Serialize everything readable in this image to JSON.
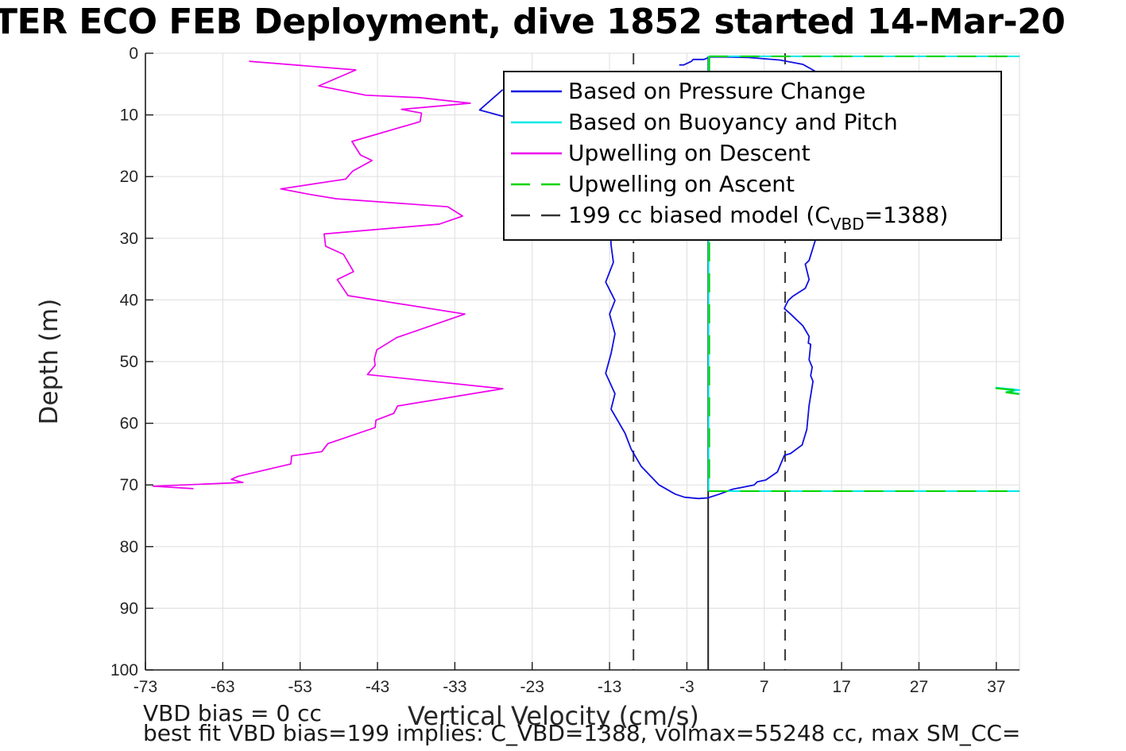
{
  "title": "TER ECO FEB Deployment, dive 1852 started 14-Mar-20",
  "axes": {
    "xlabel": "Vertical Velocity (cm/s)",
    "ylabel": "Depth (m)",
    "x_ticks": [
      -73,
      -63,
      -53,
      -43,
      -33,
      -23,
      -13,
      -3,
      7,
      17,
      27,
      37
    ],
    "y_ticks": [
      0,
      10,
      20,
      30,
      40,
      50,
      60,
      70,
      80,
      90,
      100
    ]
  },
  "annotations": {
    "vbd_bias_line": "VBD bias = 0 cc",
    "best_fit_line": "best fit VBD bias=199 implies: C_VBD=1388, volmax=55248 cc, max SM_CC="
  },
  "legend": {
    "entries": [
      {
        "label": "Based on Pressure Change",
        "color": "#1010e0",
        "dash": "solid"
      },
      {
        "label": "Based on Buoyancy and Pitch",
        "color": "#00e8e8",
        "dash": "solid"
      },
      {
        "label": "Upwelling on Descent",
        "color": "#ee00ee",
        "dash": "solid"
      },
      {
        "label": "Upwelling on Ascent",
        "color": "#00d400",
        "dash": "dashed"
      },
      {
        "label_prefix": "199 cc biased model (C",
        "label_sub": "VBD",
        "label_suffix": "=1388)",
        "color": "#333333",
        "dash": "dashed"
      }
    ]
  },
  "chart_data": {
    "type": "line",
    "title": "TER ECO FEB Deployment, dive 1852 started 14-Mar-20",
    "xlabel": "Vertical Velocity (cm/s)",
    "ylabel": "Depth (m)",
    "xlim": [
      -73,
      40
    ],
    "ylim": [
      0,
      100
    ],
    "y_inverted": true,
    "grid": true,
    "legend_position": "upper center",
    "grid_color": "#e3e3e3",
    "spine_color": "#1a1a1a",
    "tick_label_color": "#262626",
    "series": [
      {
        "name": "model-biased-dashed",
        "legend": "199 cc biased model (C_VBD=1388)",
        "color": "#3d3d3d",
        "dash": "dashed",
        "width": 2,
        "segments": [
          [
            [
              -9.9,
              0
            ],
            [
              -9.9,
              100
            ]
          ],
          [
            [
              9.7,
              0
            ],
            [
              9.7,
              100
            ]
          ]
        ]
      },
      {
        "name": "model-zero-line",
        "legend": null,
        "color": "#222222",
        "dash": "solid",
        "width": 2,
        "segments": [
          [
            [
              -0.25,
              0.5
            ],
            [
              -0.25,
              100
            ]
          ]
        ]
      },
      {
        "name": "upwelling-on-descent",
        "legend": "Upwelling on Descent",
        "color": "#ee00ee",
        "dash": "solid",
        "width": 1.7,
        "segments": [
          [
            [
              -59.6,
              1.3
            ],
            [
              -45.8,
              2.7
            ],
            [
              -50.6,
              5.3
            ],
            [
              -44.5,
              6.8
            ],
            [
              -37.5,
              7.2
            ],
            [
              -31.0,
              8.1
            ],
            [
              -39.9,
              9.1
            ],
            [
              -37.3,
              9.7
            ],
            [
              -37.5,
              11.1
            ],
            [
              -46.3,
              14.3
            ],
            [
              -45.2,
              16.5
            ],
            [
              -43.7,
              17.4
            ],
            [
              -46.2,
              19.1
            ],
            [
              -47.1,
              20.4
            ],
            [
              -55.5,
              22.0
            ],
            [
              -51.7,
              22.9
            ],
            [
              -48.3,
              23.6
            ],
            [
              -33.9,
              24.9
            ],
            [
              -32.0,
              26.4
            ],
            [
              -35.0,
              27.7
            ],
            [
              -49.9,
              29.3
            ],
            [
              -49.7,
              31.3
            ],
            [
              -47.4,
              32.6
            ],
            [
              -46.1,
              35.4
            ],
            [
              -48.2,
              36.7
            ],
            [
              -46.8,
              39.3
            ],
            [
              -31.7,
              42.3
            ],
            [
              -40.5,
              46.1
            ],
            [
              -43.1,
              48.1
            ],
            [
              -43.4,
              49.6
            ],
            [
              -43.3,
              50.6
            ],
            [
              -44.3,
              52.1
            ],
            [
              -26.8,
              54.4
            ],
            [
              -40.4,
              57.2
            ],
            [
              -40.9,
              58.4
            ],
            [
              -43.2,
              59.5
            ],
            [
              -43.3,
              60.7
            ],
            [
              -49.4,
              63.3
            ],
            [
              -50.2,
              64.6
            ],
            [
              -54.1,
              65.3
            ],
            [
              -54.2,
              66.6
            ],
            [
              -61.0,
              68.6
            ],
            [
              -61.9,
              69.1
            ],
            [
              -60.4,
              69.6
            ],
            [
              -72.0,
              70.2
            ],
            [
              -66.8,
              70.6
            ]
          ]
        ]
      },
      {
        "name": "based-on-pressure-change",
        "legend": "Based on Pressure Change",
        "color": "#1010e0",
        "dash": "solid",
        "width": 1.8,
        "segments": [
          [
            [
              -26.8,
              5.9
            ],
            [
              -29.8,
              9.2
            ],
            [
              -26.6,
              10.3
            ],
            [
              -20.0,
              13.0
            ],
            [
              -15.0,
              16.0
            ],
            [
              -13.5,
              19.0
            ],
            [
              -13.0,
              22.0
            ],
            [
              -13.2,
              25.0
            ],
            [
              -12.9,
              28.0
            ],
            [
              -12.8,
              31.1
            ],
            [
              -12.5,
              33.9
            ],
            [
              -13.5,
              37.1
            ],
            [
              -12.3,
              40.1
            ],
            [
              -13.0,
              42.3
            ],
            [
              -12.3,
              45.5
            ],
            [
              -12.8,
              48.7
            ],
            [
              -13.5,
              51.9
            ],
            [
              -12.3,
              55.2
            ],
            [
              -12.8,
              57.7
            ],
            [
              -11.0,
              61.6
            ],
            [
              -10.2,
              64.2
            ],
            [
              -8.9,
              67.0
            ],
            [
              -6.6,
              70.0
            ],
            [
              -4.5,
              71.5
            ],
            [
              -3.3,
              72.0
            ],
            [
              -1.5,
              72.2
            ],
            [
              -0.3,
              72.1
            ],
            [
              1.2,
              71.5
            ],
            [
              2.9,
              70.7
            ],
            [
              5.7,
              70.0
            ],
            [
              6.1,
              69.5
            ],
            [
              7.2,
              69.2
            ],
            [
              8.7,
              67.9
            ],
            [
              9.6,
              65.2
            ],
            [
              10.4,
              64.9
            ],
            [
              11.9,
              63.5
            ],
            [
              12.5,
              61.0
            ],
            [
              12.8,
              57.1
            ],
            [
              13.3,
              53.2
            ],
            [
              13.0,
              52.3
            ],
            [
              13.2,
              50.9
            ],
            [
              12.8,
              49.7
            ],
            [
              13.0,
              47.2
            ],
            [
              12.7,
              47.0
            ],
            [
              12.8,
              45.9
            ],
            [
              12.0,
              44.2
            ],
            [
              10.4,
              42.3
            ],
            [
              9.6,
              41.4
            ],
            [
              9.7,
              41.1
            ],
            [
              10.1,
              40.1
            ],
            [
              10.7,
              39.4
            ],
            [
              12.3,
              38.1
            ],
            [
              12.8,
              36.7
            ],
            [
              12.3,
              34.2
            ],
            [
              12.8,
              33.6
            ],
            [
              14.3,
              27.5
            ],
            [
              14.0,
              22.0
            ],
            [
              13.8,
              16.0
            ],
            [
              13.6,
              10.0
            ],
            [
              13.9,
              6.0
            ],
            [
              13.7,
              3.0
            ],
            [
              12.0,
              1.8
            ],
            [
              9.0,
              1.1
            ],
            [
              5.0,
              0.7
            ],
            [
              2.0,
              0.6
            ],
            [
              0.0,
              0.6
            ],
            [
              -0.8,
              1.0
            ],
            [
              -2.2,
              1.0
            ],
            [
              -2.4,
              1.3
            ],
            [
              -3.4,
              1.9
            ],
            [
              -4.0,
              1.9
            ]
          ]
        ]
      },
      {
        "name": "based-on-buoyancy-and-pitch",
        "legend": "Based on Buoyancy and Pitch",
        "color": "#00e8e8",
        "dash": "solid",
        "width": 2,
        "segments": [
          [
            [
              -0.2,
              0.5
            ],
            [
              40,
              0.5
            ]
          ],
          [
            [
              -0.2,
              71
            ],
            [
              40,
              71
            ]
          ],
          [
            [
              -0.2,
              0.5
            ],
            [
              -0.2,
              71
            ]
          ],
          [
            [
              36.9,
              54.2
            ],
            [
              40,
              54.6
            ],
            [
              38.3,
              54.9
            ],
            [
              40,
              55.2
            ]
          ]
        ]
      },
      {
        "name": "upwelling-on-ascent",
        "legend": "Upwelling on Ascent",
        "color": "#00d400",
        "dash": "dashed",
        "width": 2.1,
        "segments": [
          [
            [
              -0.1,
              0.5
            ],
            [
              40,
              0.5
            ]
          ],
          [
            [
              -0.1,
              71
            ],
            [
              40,
              71
            ]
          ],
          [
            [
              -0.1,
              0.5
            ],
            [
              -0.1,
              71
            ]
          ],
          [
            [
              36.9,
              54.3
            ],
            [
              40,
              54.7
            ],
            [
              38.3,
              55.0
            ],
            [
              40,
              55.3
            ]
          ]
        ]
      }
    ]
  }
}
